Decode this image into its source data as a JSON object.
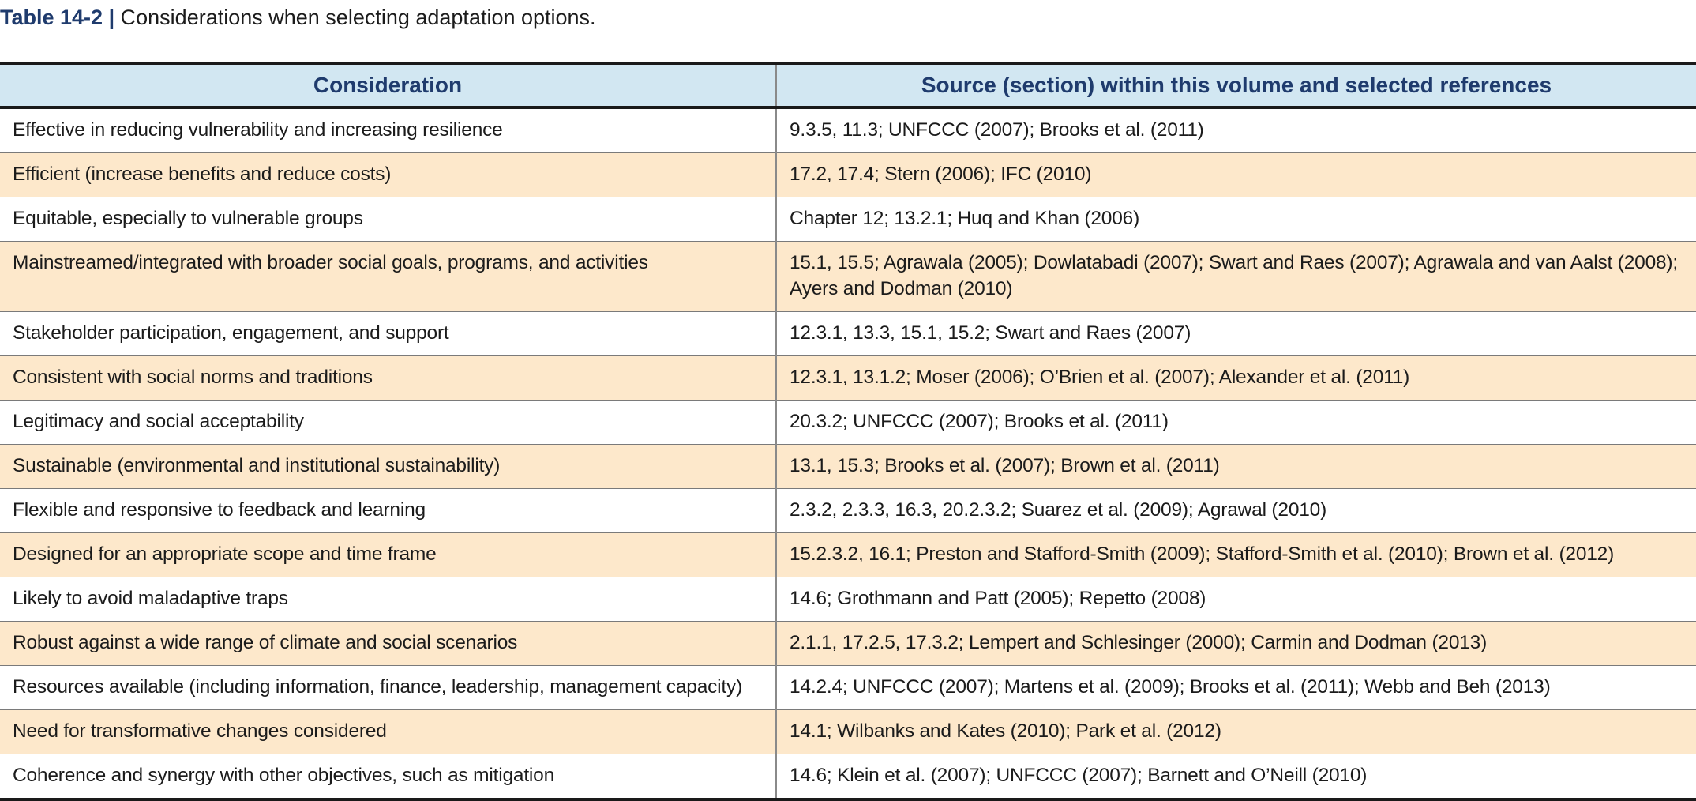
{
  "caption": {
    "label": "Table 14-2",
    "separator": "|",
    "text": "Considerations when selecting adaptation options."
  },
  "table": {
    "headers": [
      "Consideration",
      "Source (section) within this volume and selected references"
    ],
    "rows": [
      [
        "Effective in reducing vulnerability and increasing resilience",
        "9.3.5, 11.3; UNFCCC (2007); Brooks et al. (2011)"
      ],
      [
        "Efficient (increase benefits and reduce costs)",
        "17.2, 17.4; Stern (2006); IFC (2010)"
      ],
      [
        "Equitable, especially to vulnerable groups",
        "Chapter 12; 13.2.1; Huq and Khan (2006)"
      ],
      [
        "Mainstreamed/integrated with broader social goals, programs, and activities",
        "15.1, 15.5; Agrawala (2005); Dowlatabadi (2007); Swart and Raes (2007); Agrawala and van Aalst (2008); Ayers and Dodman (2010)"
      ],
      [
        "Stakeholder participation, engagement, and support",
        "12.3.1, 13.3, 15.1, 15.2; Swart and Raes (2007)"
      ],
      [
        "Consistent with social norms and traditions",
        "12.3.1, 13.1.2; Moser (2006); O’Brien et al. (2007); Alexander et al. (2011)"
      ],
      [
        "Legitimacy and social acceptability",
        "20.3.2; UNFCCC (2007); Brooks et al. (2011)"
      ],
      [
        "Sustainable (environmental and institutional sustainability)",
        "13.1, 15.3; Brooks et al. (2007); Brown et al. (2011)"
      ],
      [
        "Flexible and responsive to feedback and learning",
        "2.3.2, 2.3.3, 16.3, 20.2.3.2; Suarez et al. (2009); Agrawal (2010)"
      ],
      [
        "Designed for an appropriate scope and time frame",
        "15.2.3.2, 16.1; Preston and Stafford-Smith (2009); Stafford-Smith et al. (2010); Brown et al. (2012)"
      ],
      [
        "Likely to avoid maladaptive traps",
        "14.6; Grothmann and Patt (2005); Repetto (2008)"
      ],
      [
        "Robust against a wide range of climate and social scenarios",
        "2.1.1, 17.2.5, 17.3.2; Lempert and Schlesinger (2000); Carmin and Dodman (2013)"
      ],
      [
        "Resources available (including information, finance, leadership, management capacity)",
        "14.2.4; UNFCCC (2007); Martens et al. (2009); Brooks et al. (2011); Webb and Beh (2013)"
      ],
      [
        "Need for transformative changes considered",
        "14.1; Wilbanks and Kates (2010); Park et al. (2012)"
      ],
      [
        "Coherence and synergy with other objectives, such as mitigation",
        "14.6; Klein et al. (2007); UNFCCC (2007); Barnett and O’Neill (2010)"
      ]
    ]
  },
  "colors": {
    "header_bg": "#d2e7f2",
    "header_text": "#1f3b6d",
    "stripe_bg": "#fde8cb",
    "row_bg": "#ffffff"
  }
}
